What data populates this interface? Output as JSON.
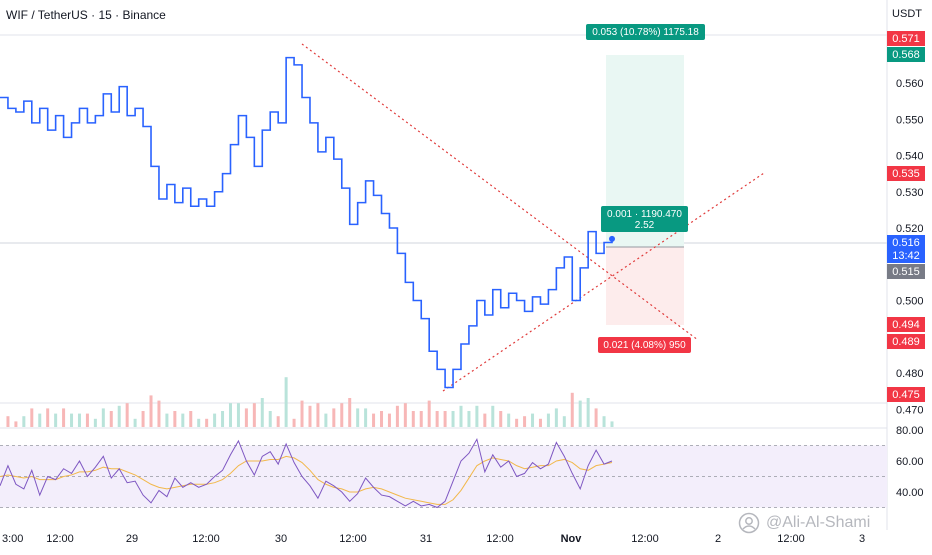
{
  "header": {
    "symbol_title": "WIF / TetherUS · 15 · Binance",
    "currency": "USDT"
  },
  "watermark": {
    "author": "@Ali-Al-Shami",
    "icon": "tradingview-user-icon"
  },
  "colors": {
    "price_line": "#2962ff",
    "trendline": "#e03a3a",
    "rsi_line": "#7e57c2",
    "rsi_ma": "#f2b84b",
    "rsi_band": "#f3eefb",
    "target_fill": "#e9f7f3",
    "stop_fill": "#fdecec",
    "badge_green": "#089981",
    "badge_red": "#f23645",
    "badge_blue": "#2962ff",
    "badge_gray": "#787b86",
    "volume_up": "#b9e3da",
    "volume_down": "#f7b7b7"
  },
  "position_tool": {
    "target_label": "0.053 (10.78%) 1175.18",
    "entry_label_line1": "0.001 · 1190.470",
    "entry_label_line2": "2.52",
    "stop_label": "0.021 (4.08%) 950"
  },
  "chart_data": [
    {
      "type": "line",
      "name": "price",
      "y_axis_ticks": [
        0.56,
        0.55,
        0.54,
        0.53,
        0.52,
        0.5,
        0.48,
        0.47
      ],
      "y_axis_tick_labels": [
        "0.560",
        "0.550",
        "0.540",
        "0.530",
        "0.520",
        "0.500",
        "0.480",
        "0.470"
      ],
      "ylim": [
        0.468,
        0.578
      ],
      "x_axis_labels": [
        "3:00",
        "12:00",
        "29",
        "12:00",
        "30",
        "12:00",
        "31",
        "12:00",
        "Nov",
        "12:00",
        "2",
        "12:00",
        "3"
      ],
      "price_badges": [
        {
          "value": "0.571",
          "kind": "red"
        },
        {
          "value": "0.568",
          "kind": "green"
        },
        {
          "value": "0.535",
          "kind": "red"
        },
        {
          "value": "0.516",
          "kind": "blue",
          "sub": "13:42"
        },
        {
          "value": "0.515",
          "kind": "gray"
        },
        {
          "value": "0.494",
          "kind": "red"
        },
        {
          "value": "0.489",
          "kind": "red"
        },
        {
          "value": "0.475",
          "kind": "red"
        }
      ],
      "series": [
        {
          "values": [
            0.556,
            0.553,
            0.552,
            0.555,
            0.549,
            0.553,
            0.547,
            0.551,
            0.545,
            0.549,
            0.553,
            0.549,
            0.551,
            0.557,
            0.552,
            0.559,
            0.551,
            0.553,
            0.548,
            0.537,
            0.528,
            0.532,
            0.527,
            0.531,
            0.526,
            0.528,
            0.526,
            0.53,
            0.535,
            0.543,
            0.551,
            0.545,
            0.537,
            0.547,
            0.552,
            0.549,
            0.567,
            0.565,
            0.556,
            0.549,
            0.541,
            0.545,
            0.539,
            0.531,
            0.521,
            0.527,
            0.533,
            0.529,
            0.524,
            0.52,
            0.513,
            0.505,
            0.5,
            0.495,
            0.486,
            0.481,
            0.476,
            0.481,
            0.488,
            0.493,
            0.5,
            0.496,
            0.503,
            0.498,
            0.502,
            0.5,
            0.497,
            0.501,
            0.499,
            0.503,
            0.509,
            0.512,
            0.5,
            0.509,
            0.519,
            0.513,
            0.516,
            0.517
          ]
        }
      ],
      "trendlines": [
        {
          "from": [
            0.567
          ],
          "to": [
            0.489
          ],
          "note": "descending"
        },
        {
          "from": [
            0.476
          ],
          "to": [
            0.535
          ],
          "note": "ascending"
        }
      ]
    },
    {
      "type": "line",
      "name": "rsi",
      "y_axis_tick_labels": [
        "80.00",
        "60.00",
        "40.00"
      ],
      "ylim": [
        28,
        82
      ],
      "band": [
        30,
        70
      ],
      "series": [
        {
          "name": "rsi",
          "values": [
            44,
            57,
            45,
            42,
            54,
            38,
            50,
            48,
            55,
            52,
            60,
            50,
            56,
            63,
            49,
            55,
            46,
            47,
            38,
            33,
            41,
            37,
            49,
            43,
            46,
            43,
            45,
            50,
            54,
            64,
            73,
            60,
            51,
            63,
            66,
            58,
            71,
            59,
            50,
            44,
            36,
            47,
            44,
            40,
            34,
            39,
            49,
            43,
            38,
            37,
            34,
            31,
            34,
            31,
            32,
            30,
            34,
            47,
            60,
            65,
            74,
            53,
            64,
            56,
            60,
            50,
            52,
            59,
            55,
            58,
            72,
            63,
            52,
            42,
            57,
            67,
            58,
            60
          ]
        },
        {
          "name": "rsi-ma",
          "values": [
            50,
            51,
            50,
            49,
            50,
            48,
            48,
            48,
            50,
            51,
            53,
            53,
            54,
            56,
            55,
            55,
            53,
            51,
            48,
            45,
            43,
            42,
            43,
            44,
            45,
            45,
            45,
            46,
            48,
            52,
            57,
            60,
            60,
            60,
            61,
            61,
            63,
            62,
            59,
            54,
            48,
            45,
            43,
            42,
            40,
            40,
            42,
            43,
            42,
            40,
            38,
            36,
            35,
            34,
            33,
            32,
            32,
            35,
            41,
            49,
            57,
            60,
            62,
            61,
            60,
            57,
            55,
            56,
            57,
            57,
            60,
            61,
            59,
            55,
            54,
            57,
            58,
            59
          ]
        }
      ]
    }
  ]
}
